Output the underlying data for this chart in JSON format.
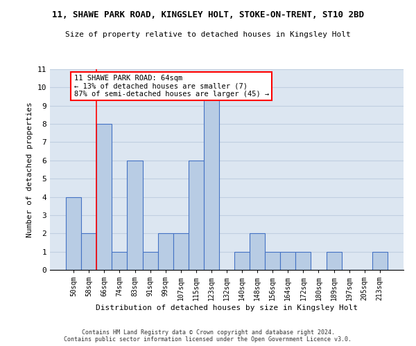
{
  "title_line1": "11, SHAWE PARK ROAD, KINGSLEY HOLT, STOKE-ON-TRENT, ST10 2BD",
  "title_line2": "Size of property relative to detached houses in Kingsley Holt",
  "xlabel": "Distribution of detached houses by size in Kingsley Holt",
  "ylabel": "Number of detached properties",
  "categories": [
    "50sqm",
    "58sqm",
    "66sqm",
    "74sqm",
    "83sqm",
    "91sqm",
    "99sqm",
    "107sqm",
    "115sqm",
    "123sqm",
    "132sqm",
    "140sqm",
    "148sqm",
    "156sqm",
    "164sqm",
    "172sqm",
    "180sqm",
    "189sqm",
    "197sqm",
    "205sqm",
    "213sqm"
  ],
  "values": [
    4,
    2,
    8,
    1,
    6,
    1,
    2,
    2,
    6,
    10,
    0,
    1,
    2,
    1,
    1,
    1,
    0,
    1,
    0,
    0,
    1
  ],
  "bar_color": "#b8cce4",
  "bar_edge_color": "#4472c4",
  "highlight_index": 11,
  "highlight_color": "#8eb4e3",
  "grid_color": "#c0cfe0",
  "background_color": "#dce6f1",
  "red_line_x": 1.5,
  "annotation_text": "11 SHAWE PARK ROAD: 64sqm\n← 13% of detached houses are smaller (7)\n87% of semi-detached houses are larger (45) →",
  "annotation_box_color": "white",
  "annotation_box_edge_color": "red",
  "ylim": [
    0,
    11
  ],
  "yticks": [
    0,
    1,
    2,
    3,
    4,
    5,
    6,
    7,
    8,
    9,
    10,
    11
  ],
  "footer_line1": "Contains HM Land Registry data © Crown copyright and database right 2024.",
  "footer_line2": "Contains public sector information licensed under the Open Government Licence v3.0."
}
